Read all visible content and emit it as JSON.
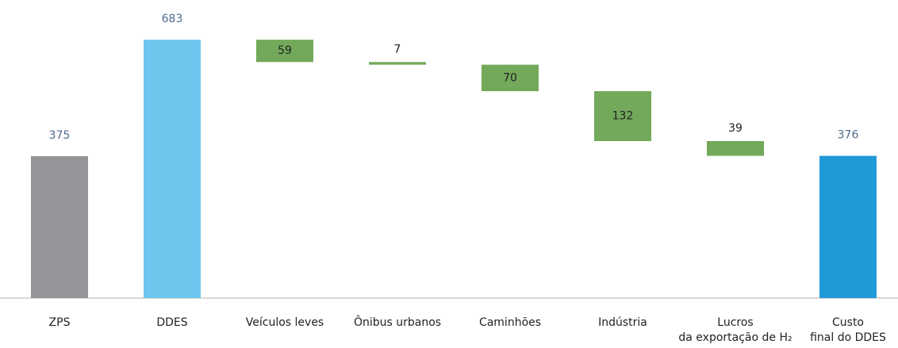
{
  "chart_data": {
    "type": "waterfall",
    "categories": [
      "ZPS",
      "DDES",
      "Veículos leves",
      "Ônibus urbanos",
      "Caminhões",
      "Indústria",
      [
        "Lucros",
        "da exportação de H₂"
      ],
      [
        "Custo",
        "final do DDES"
      ]
    ],
    "values": [
      375,
      683,
      59,
      7,
      70,
      132,
      39,
      376
    ],
    "kinds": [
      "total",
      "total",
      "decrease",
      "decrease",
      "decrease",
      "decrease",
      "decrease",
      "total"
    ],
    "colors": [
      "#939598",
      "#6ec6ee",
      "#72a95a",
      "#72a95a",
      "#72a95a",
      "#72a95a",
      "#72a95a",
      "#2199d8"
    ],
    "ylim": [
      0,
      788
    ]
  }
}
